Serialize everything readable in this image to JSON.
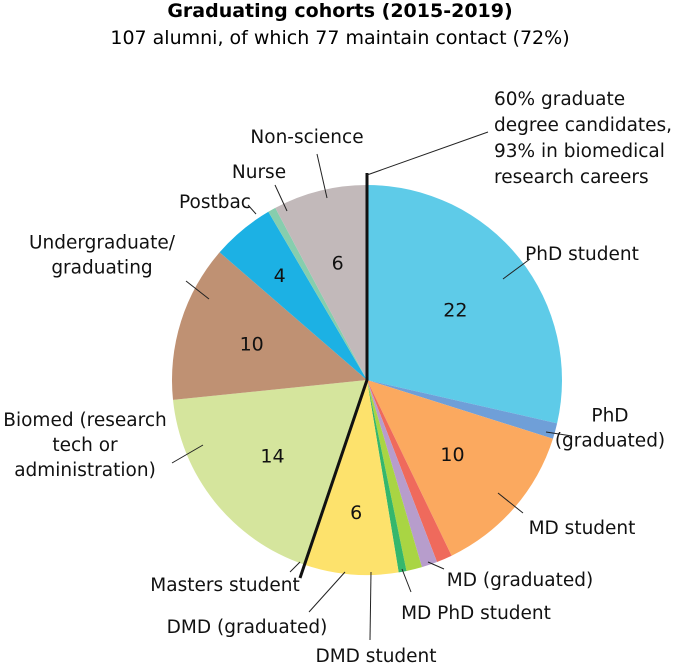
{
  "chart_data": {
    "type": "pie",
    "title": "Graduating cohorts (2015-2019)",
    "subtitle": "107 alumni, of which 77 maintain contact (72%)",
    "slices": [
      {
        "label": "PhD student",
        "value": 22,
        "value_label": "22",
        "color": "#5ecbe8"
      },
      {
        "label": "PhD\n(graduated)",
        "value": 1,
        "value_label": "",
        "color": "#6f9fd8"
      },
      {
        "label": "MD student",
        "value": 10,
        "value_label": "10",
        "color": "#fba95f"
      },
      {
        "label": "MD (graduated)",
        "value": 1,
        "value_label": "",
        "color": "#ef6a5c"
      },
      {
        "label": "MD PhD student",
        "value": 1,
        "value_label": "",
        "color": "#b79dcc"
      },
      {
        "label": "DMD student",
        "value": 1,
        "value_label": "",
        "color": "#a9d543"
      },
      {
        "label": "DMD (graduated)",
        "value": 0.5,
        "value_label": "",
        "color": "#34b76c"
      },
      {
        "label": "Masters student",
        "value": 6,
        "value_label": "6",
        "color": "#fde26c"
      },
      {
        "label": "Biomed (research\ntech or\nadministration)",
        "value": 14,
        "value_label": "14",
        "color": "#d5e59d"
      },
      {
        "label": "Undergraduate/\ngraduating",
        "value": 10,
        "value_label": "10",
        "color": "#bf9173"
      },
      {
        "label": "Postbac",
        "value": 4,
        "value_label": "4",
        "color": "#1cb1e4"
      },
      {
        "label": "Nurse",
        "value": 0.5,
        "value_label": "",
        "color": "#86ceae"
      },
      {
        "label": "Non-science",
        "value": 6,
        "value_label": "6",
        "color": "#c2b9ba"
      }
    ],
    "annotation": "60% graduate\ndegree candidates,\n93% in biomedical\nresearch careers"
  }
}
